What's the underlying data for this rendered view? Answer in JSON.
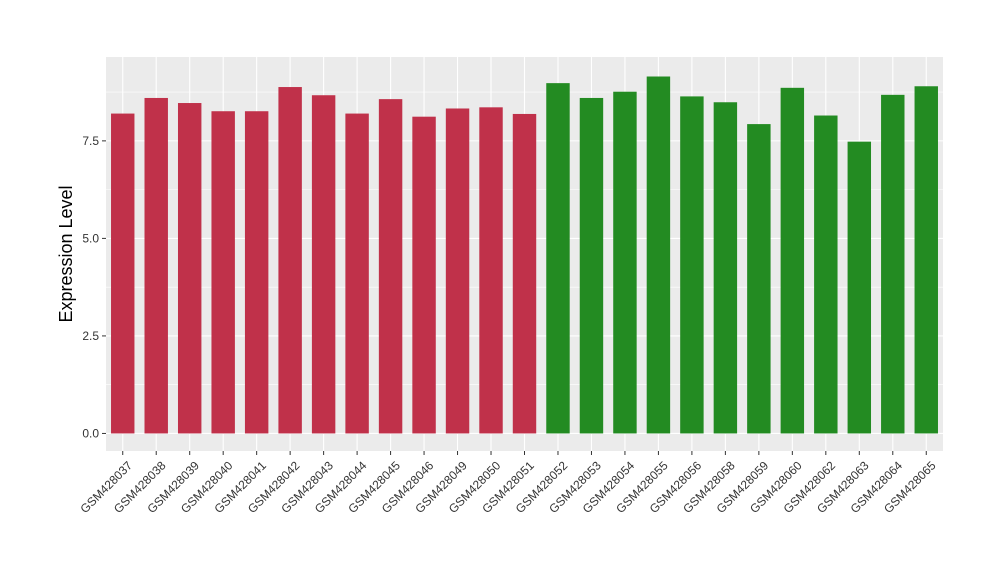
{
  "chart_data": {
    "type": "bar",
    "title": "",
    "xlabel": "",
    "ylabel": "Expression Level",
    "ylim": [
      -0.45,
      9.65
    ],
    "yticks": [
      0.0,
      2.5,
      5.0,
      7.5
    ],
    "ytick_labels": [
      "0.0",
      "2.5",
      "5.0",
      "7.5"
    ],
    "grid": true,
    "legend": "none",
    "colors": {
      "group1": "#C0314A",
      "group2": "#238B22",
      "panel": "#EBEBEB",
      "grid": "#FFFFFF"
    },
    "categories": [
      "GSM428037",
      "GSM428038",
      "GSM428039",
      "GSM428040",
      "GSM428041",
      "GSM428042",
      "GSM428043",
      "GSM428044",
      "GSM428045",
      "GSM428046",
      "GSM428049",
      "GSM428050",
      "GSM428051",
      "GSM428052",
      "GSM428053",
      "GSM428054",
      "GSM428055",
      "GSM428056",
      "GSM428058",
      "GSM428059",
      "GSM428060",
      "GSM428062",
      "GSM428063",
      "GSM428064",
      "GSM428065"
    ],
    "values": [
      8.2,
      8.6,
      8.47,
      8.26,
      8.26,
      8.88,
      8.67,
      8.2,
      8.57,
      8.12,
      8.33,
      8.36,
      8.19,
      8.98,
      8.6,
      8.76,
      9.15,
      8.64,
      8.49,
      7.93,
      8.86,
      8.15,
      7.48,
      8.68,
      8.9
    ],
    "groups": [
      1,
      1,
      1,
      1,
      1,
      1,
      1,
      1,
      1,
      1,
      1,
      1,
      1,
      2,
      2,
      2,
      2,
      2,
      2,
      2,
      2,
      2,
      2,
      2,
      2
    ]
  }
}
